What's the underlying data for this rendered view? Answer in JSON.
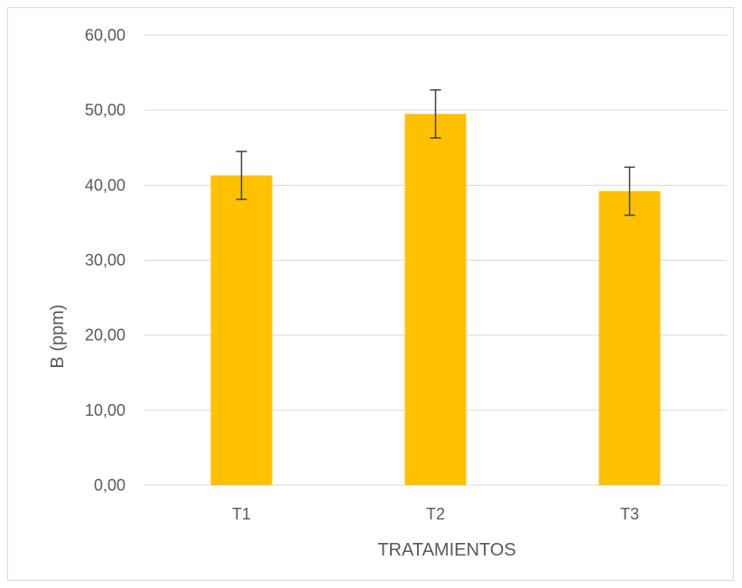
{
  "chart_data": {
    "type": "bar",
    "title": "",
    "xlabel": "TRATAMIENTOS",
    "ylabel": "B (ppm)",
    "categories": [
      "T1",
      "T2",
      "T3"
    ],
    "values": [
      41.3,
      49.5,
      39.2
    ],
    "error": [
      3.2,
      3.2,
      3.2
    ],
    "ylim": [
      0,
      60
    ],
    "yticks": [
      0,
      10,
      20,
      30,
      40,
      50,
      60
    ],
    "ytick_labels": [
      "0,00",
      "10,00",
      "20,00",
      "30,00",
      "40,00",
      "50,00",
      "60,00"
    ],
    "grid": "horizontal",
    "legend": "none",
    "colors": {
      "bar": "#FFC000",
      "grid": "#d9d9d9",
      "error_bar": "#404040",
      "text": "#595959"
    }
  }
}
